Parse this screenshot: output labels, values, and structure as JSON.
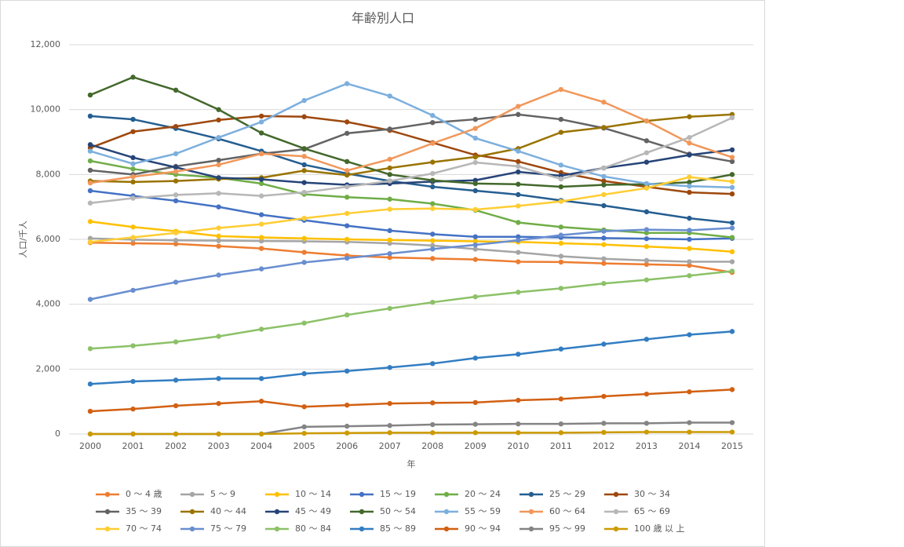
{
  "chart_data": {
    "type": "line",
    "title": "年齢別人口",
    "x_label": "年",
    "y_label": "人口/千人",
    "categories": [
      "2000",
      "2001",
      "2002",
      "2003",
      "2004",
      "2005",
      "2006",
      "2007",
      "2008",
      "2009",
      "2010",
      "2011",
      "2012",
      "2013",
      "2014",
      "2015"
    ],
    "ylim": [
      0,
      12000
    ],
    "yticks": [
      0,
      {
        "value": 2000,
        "label": "2,000"
      },
      {
        "value": 4000,
        "label": "4,000"
      },
      {
        "value": 6000,
        "label": "6,000"
      },
      {
        "value": 8000,
        "label": "8,000"
      },
      {
        "value": 10000,
        "label": "10,000"
      },
      {
        "value": 12000,
        "label": "12,000"
      }
    ],
    "grid": true,
    "series": [
      {
        "name": "0 ～ 4 歳",
        "color": "#ed7d31",
        "values": [
          5900,
          5880,
          5860,
          5790,
          5720,
          5600,
          5500,
          5440,
          5410,
          5380,
          5310,
          5300,
          5260,
          5230,
          5200,
          4980
        ]
      },
      {
        "name": "5 ～ 9",
        "color": "#a5a5a5",
        "values": [
          6030,
          5990,
          5970,
          5960,
          5950,
          5940,
          5920,
          5880,
          5810,
          5700,
          5600,
          5480,
          5400,
          5350,
          5310,
          5310
        ]
      },
      {
        "name": "10 ～ 14",
        "color": "#ffc000",
        "values": [
          6550,
          6380,
          6250,
          6100,
          6060,
          6030,
          6000,
          5980,
          5960,
          5940,
          5920,
          5880,
          5840,
          5780,
          5720,
          5620
        ]
      },
      {
        "name": "15 ～ 19",
        "color": "#4472c4",
        "values": [
          7500,
          7340,
          7190,
          7000,
          6760,
          6590,
          6420,
          6270,
          6160,
          6080,
          6080,
          6060,
          6040,
          6020,
          6000,
          6030
        ]
      },
      {
        "name": "20 ～ 24",
        "color": "#70ad47",
        "values": [
          8420,
          8170,
          8000,
          7900,
          7720,
          7390,
          7300,
          7240,
          7100,
          6900,
          6520,
          6380,
          6290,
          6200,
          6200,
          6060
        ]
      },
      {
        "name": "25 ～ 29",
        "color": "#255e91",
        "values": [
          9800,
          9700,
          9420,
          9100,
          8720,
          8300,
          8030,
          7800,
          7620,
          7500,
          7380,
          7200,
          7040,
          6850,
          6650,
          6510
        ]
      },
      {
        "name": "30 ～ 34",
        "color": "#9e480e",
        "values": [
          8820,
          9320,
          9480,
          9680,
          9800,
          9780,
          9620,
          9360,
          8980,
          8600,
          8400,
          8060,
          7800,
          7620,
          7450,
          7400
        ]
      },
      {
        "name": "35 ～ 39",
        "color": "#636363",
        "values": [
          8130,
          8000,
          8250,
          8440,
          8640,
          8780,
          9270,
          9400,
          9600,
          9700,
          9850,
          9700,
          9430,
          9040,
          8630,
          8400
        ]
      },
      {
        "name": "40 ～ 44",
        "color": "#997300",
        "values": [
          7800,
          7770,
          7800,
          7860,
          7900,
          8120,
          7980,
          8200,
          8380,
          8540,
          8800,
          9300,
          9450,
          9650,
          9780,
          9850
        ]
      },
      {
        "name": "45 ～ 49",
        "color": "#264478",
        "values": [
          8920,
          8520,
          8220,
          7900,
          7850,
          7750,
          7680,
          7720,
          7780,
          7820,
          8080,
          7960,
          8200,
          8380,
          8600,
          8760
        ]
      },
      {
        "name": "50 ～ 54",
        "color": "#43682b",
        "values": [
          10450,
          11000,
          10600,
          10000,
          9280,
          8800,
          8400,
          8000,
          7820,
          7720,
          7700,
          7620,
          7680,
          7700,
          7760,
          8000
        ]
      },
      {
        "name": "55 ～ 59",
        "color": "#7cafdd",
        "values": [
          8720,
          8330,
          8640,
          9140,
          9620,
          10280,
          10800,
          10420,
          9820,
          9120,
          8720,
          8290,
          7940,
          7720,
          7640,
          7600
        ]
      },
      {
        "name": "60 ～ 64",
        "color": "#f1975a",
        "values": [
          7740,
          7930,
          8090,
          8300,
          8640,
          8560,
          8120,
          8470,
          8960,
          9420,
          10100,
          10620,
          10230,
          9650,
          8970,
          8530
        ]
      },
      {
        "name": "65 ～ 69",
        "color": "#b7b7b7",
        "values": [
          7120,
          7270,
          7370,
          7420,
          7340,
          7450,
          7620,
          7800,
          8030,
          8370,
          8250,
          7860,
          8200,
          8670,
          9140,
          9750
        ]
      },
      {
        "name": "70 ～ 74",
        "color": "#ffcd33",
        "values": [
          5920,
          6060,
          6200,
          6350,
          6470,
          6650,
          6800,
          6930,
          6950,
          6920,
          7030,
          7170,
          7380,
          7580,
          7920,
          7780
        ]
      },
      {
        "name": "75 ～ 79",
        "color": "#698ed0",
        "values": [
          4150,
          4430,
          4680,
          4900,
          5090,
          5290,
          5420,
          5560,
          5700,
          5830,
          5970,
          6130,
          6250,
          6300,
          6280,
          6350
        ]
      },
      {
        "name": "80 ～ 84",
        "color": "#8cc168",
        "values": [
          2630,
          2720,
          2840,
          3010,
          3230,
          3420,
          3670,
          3870,
          4060,
          4230,
          4370,
          4490,
          4640,
          4750,
          4880,
          5020
        ]
      },
      {
        "name": "85 ～ 89",
        "color": "#327dc2",
        "values": [
          1540,
          1620,
          1660,
          1710,
          1710,
          1860,
          1940,
          2050,
          2170,
          2340,
          2460,
          2620,
          2770,
          2920,
          3060,
          3160
        ]
      },
      {
        "name": "90 ～ 94",
        "color": "#d26012",
        "values": [
          700,
          770,
          870,
          940,
          1010,
          840,
          890,
          940,
          960,
          970,
          1040,
          1080,
          1160,
          1230,
          1300,
          1370
        ]
      },
      {
        "name": "95 ～ 99",
        "color": "#848484",
        "values": [
          0,
          0,
          0,
          0,
          0,
          220,
          240,
          260,
          290,
          300,
          310,
          310,
          330,
          330,
          350,
          350
        ]
      },
      {
        "name": "100 歳 以 上",
        "color": "#cc9a00",
        "values": [
          0,
          0,
          0,
          0,
          0,
          20,
          30,
          40,
          40,
          40,
          40,
          40,
          50,
          60,
          60,
          60
        ]
      }
    ]
  }
}
